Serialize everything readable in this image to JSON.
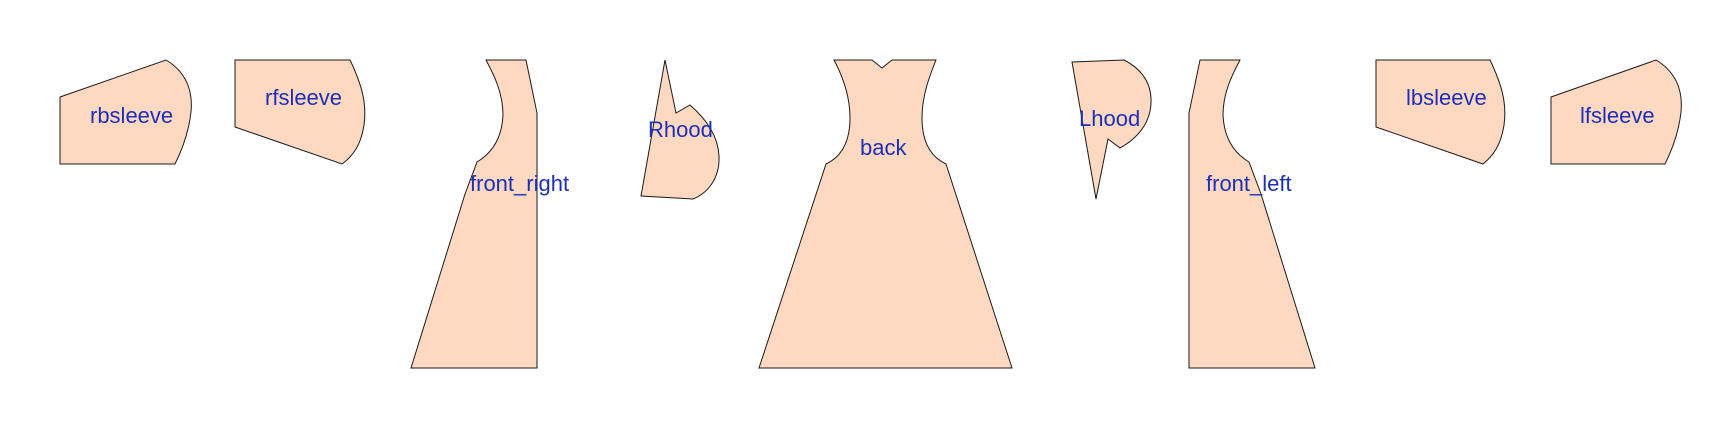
{
  "colors": {
    "piece_fill": "#fdd9c2",
    "label_color": "#1f2fb5"
  },
  "pieces": [
    {
      "id": "rbsleeve",
      "label": "rbsleeve"
    },
    {
      "id": "rfsleeve",
      "label": "rfsleeve"
    },
    {
      "id": "front_right",
      "label": "front_right"
    },
    {
      "id": "rhood",
      "label": "Rhood"
    },
    {
      "id": "back",
      "label": "back"
    },
    {
      "id": "lhood",
      "label": "Lhood"
    },
    {
      "id": "front_left",
      "label": "front_left"
    },
    {
      "id": "lbsleeve",
      "label": "lbsleeve"
    },
    {
      "id": "lfsleeve",
      "label": "lfsleeve"
    }
  ]
}
